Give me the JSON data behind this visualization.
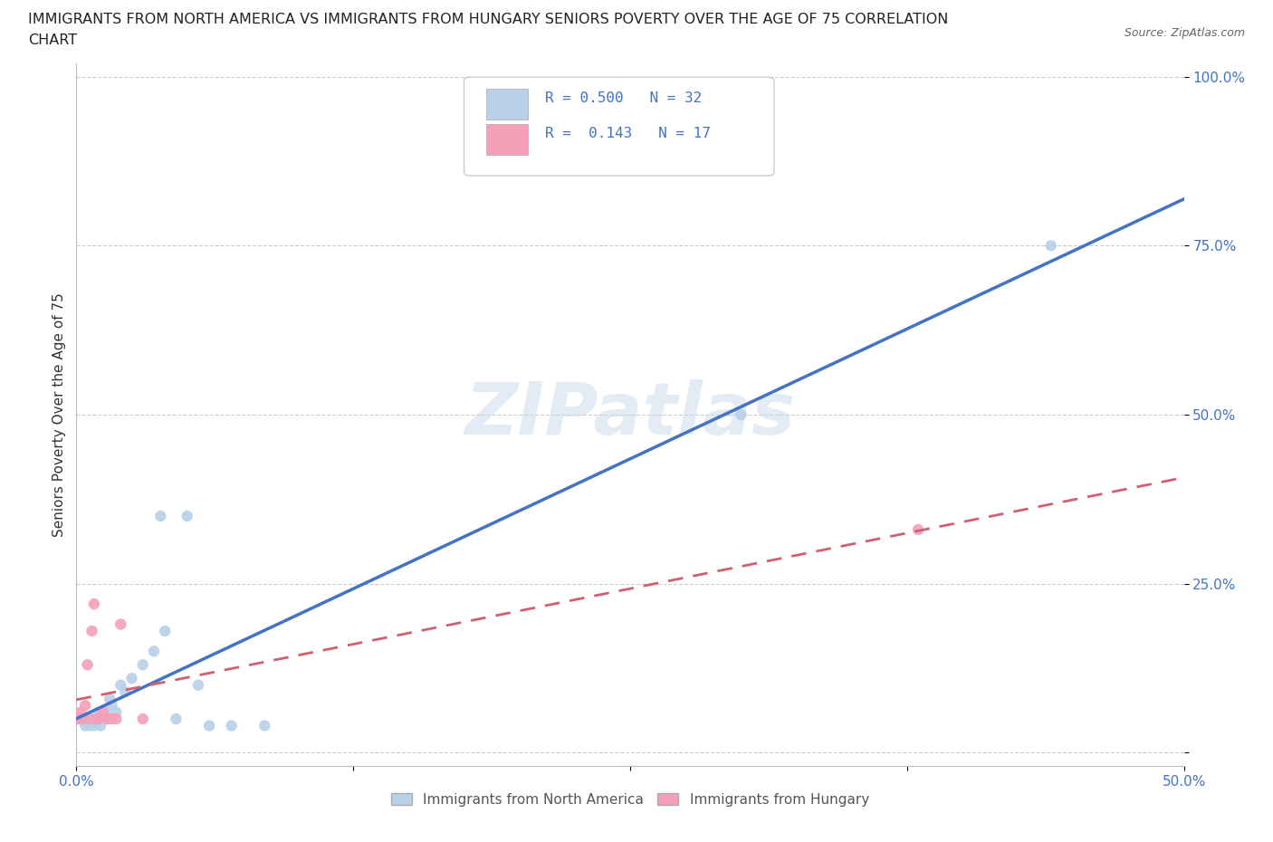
{
  "title_line1": "IMMIGRANTS FROM NORTH AMERICA VS IMMIGRANTS FROM HUNGARY SENIORS POVERTY OVER THE AGE OF 75 CORRELATION",
  "title_line2": "CHART",
  "source": "Source: ZipAtlas.com",
  "ylabel": "Seniors Poverty Over the Age of 75",
  "watermark": "ZIPatlas",
  "north_america": {
    "label": "Immigrants from North America",
    "R": 0.5,
    "N": 32,
    "color": "#b8d0e8",
    "line_color": "#4472C4",
    "x": [
      0.001,
      0.002,
      0.003,
      0.004,
      0.005,
      0.006,
      0.007,
      0.008,
      0.009,
      0.01,
      0.011,
      0.012,
      0.013,
      0.014,
      0.015,
      0.016,
      0.018,
      0.02,
      0.022,
      0.025,
      0.03,
      0.035,
      0.038,
      0.04,
      0.045,
      0.05,
      0.055,
      0.06,
      0.07,
      0.085,
      0.3,
      0.44
    ],
    "y": [
      0.05,
      0.05,
      0.05,
      0.04,
      0.05,
      0.04,
      0.05,
      0.04,
      0.05,
      0.06,
      0.04,
      0.05,
      0.06,
      0.05,
      0.08,
      0.07,
      0.06,
      0.1,
      0.09,
      0.11,
      0.13,
      0.15,
      0.35,
      0.18,
      0.05,
      0.35,
      0.1,
      0.04,
      0.04,
      0.04,
      0.5,
      0.75
    ]
  },
  "hungary": {
    "label": "Immigrants from Hungary",
    "R": 0.143,
    "N": 17,
    "color": "#f4a0b8",
    "line_color": "#d06070",
    "x": [
      0.001,
      0.002,
      0.003,
      0.004,
      0.005,
      0.006,
      0.007,
      0.008,
      0.009,
      0.01,
      0.012,
      0.014,
      0.016,
      0.018,
      0.02,
      0.03,
      0.38
    ],
    "y": [
      0.05,
      0.06,
      0.05,
      0.07,
      0.13,
      0.05,
      0.18,
      0.22,
      0.05,
      0.05,
      0.06,
      0.05,
      0.05,
      0.05,
      0.19,
      0.05,
      0.33
    ]
  },
  "xlim": [
    0.0,
    0.5
  ],
  "ylim": [
    -0.02,
    1.02
  ],
  "ytick_vals": [
    0.0,
    0.25,
    0.5,
    0.75,
    1.0
  ],
  "ytick_labels": [
    "",
    "25.0%",
    "50.0%",
    "75.0%",
    "100.0%"
  ],
  "xtick_vals": [
    0.0,
    0.125,
    0.25,
    0.375,
    0.5
  ],
  "xtick_labels": [
    "0.0%",
    "",
    "",
    "",
    "50.0%"
  ],
  "grid_color": "#cccccc",
  "background_color": "#ffffff",
  "title_fontsize": 11.5,
  "tick_fontsize": 11,
  "tick_color": "#4472C4"
}
